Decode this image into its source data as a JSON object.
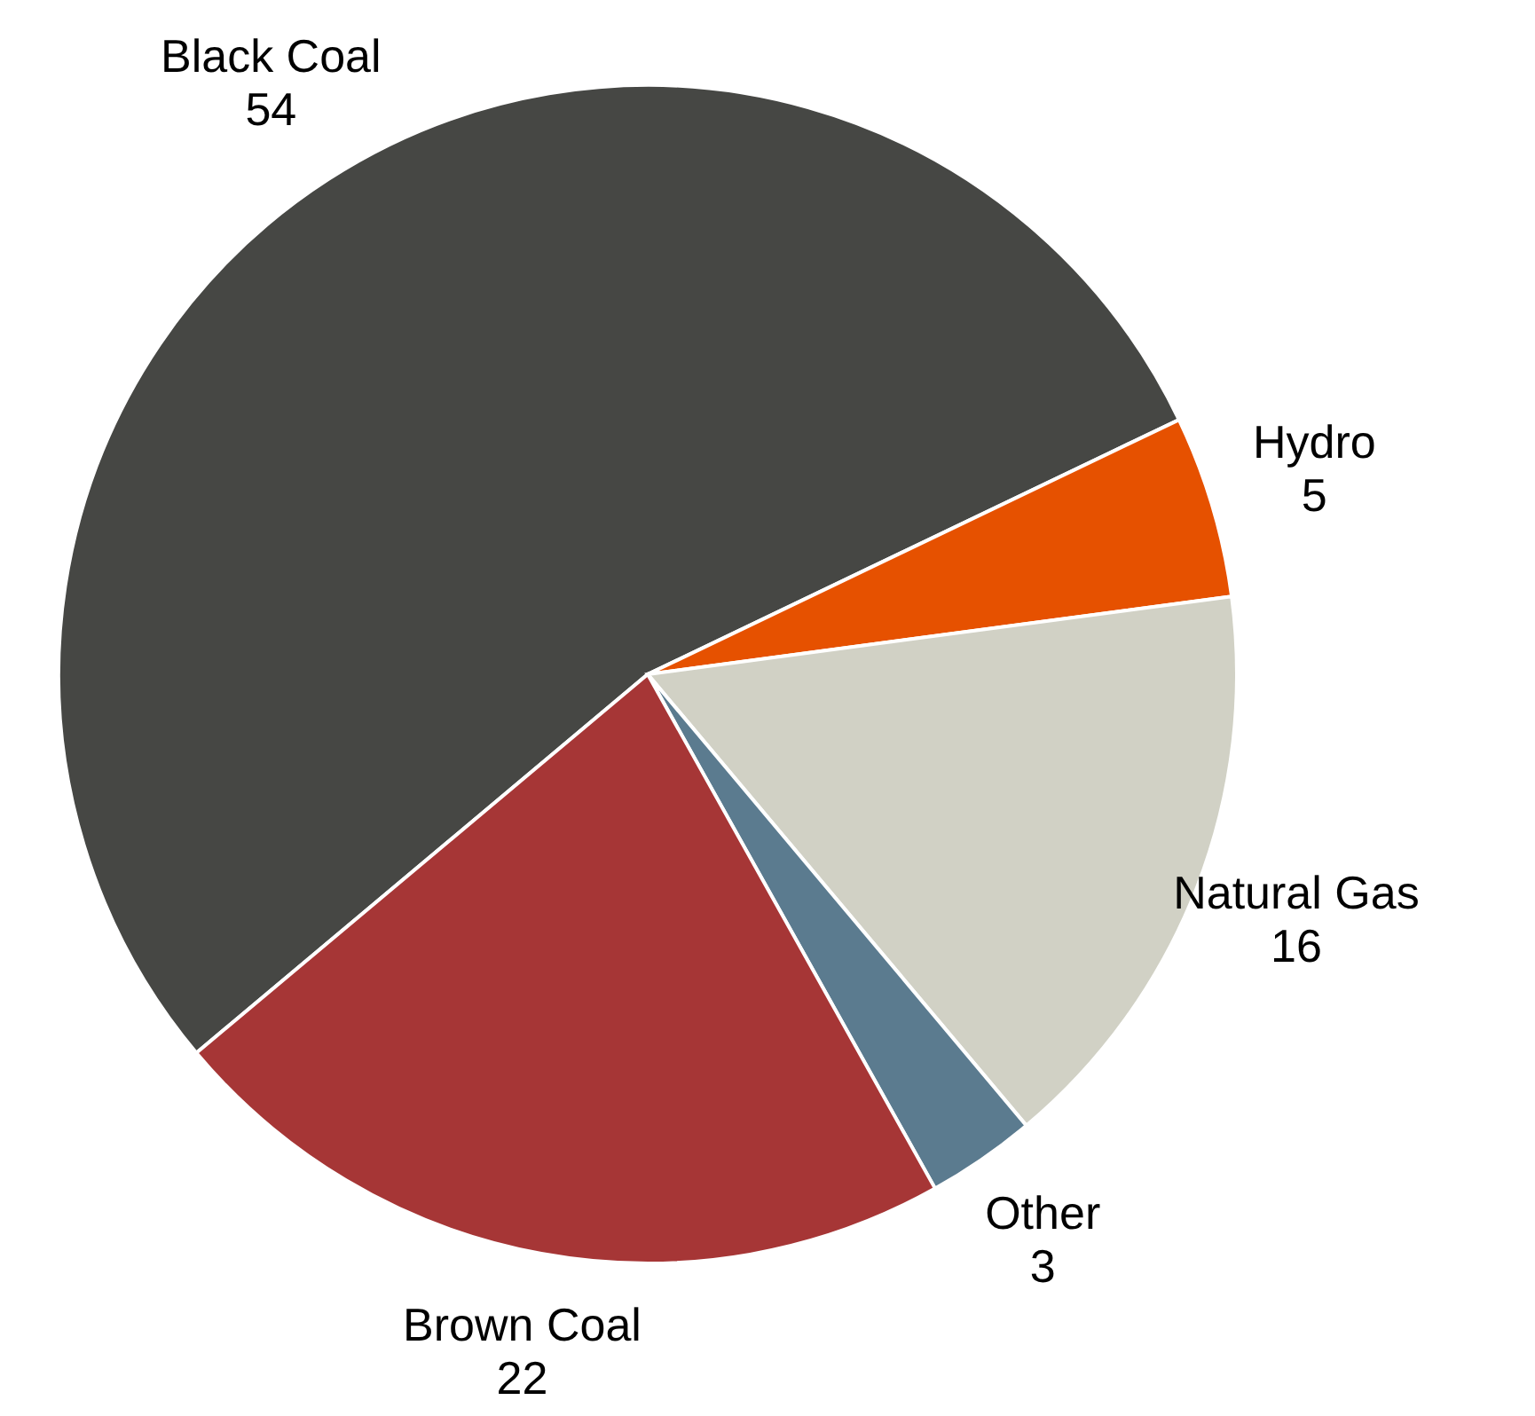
{
  "chart_data": {
    "type": "pie",
    "categories": [
      "Black Coal",
      "Hydro",
      "Natural Gas",
      "Other",
      "Brown Coal"
    ],
    "values": [
      54,
      5,
      16,
      3,
      22
    ],
    "colors": [
      "#464744",
      "#e65100",
      "#d1d1c5",
      "#5b7b8f",
      "#a63636"
    ],
    "data_labels": true,
    "legend": false
  }
}
